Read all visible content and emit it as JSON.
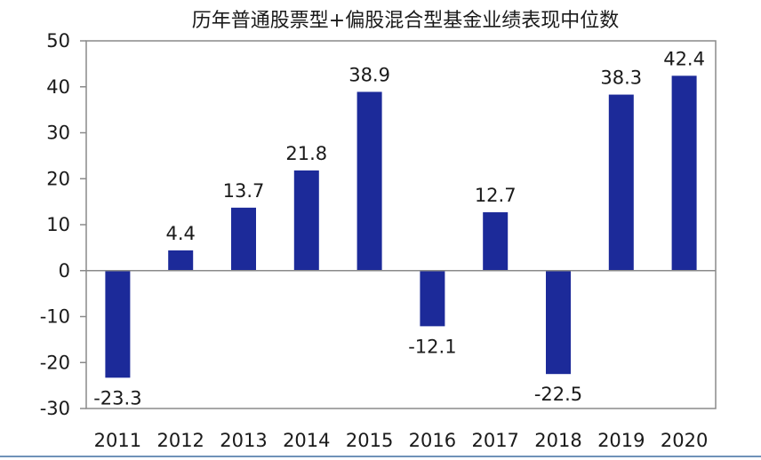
{
  "chart_data": {
    "type": "bar",
    "title": "历年普通股票型+偏股混合型基金业绩表现中位数",
    "categories": [
      "2011",
      "2012",
      "2013",
      "2014",
      "2015",
      "2016",
      "2017",
      "2018",
      "2019",
      "2020"
    ],
    "values": [
      -23.3,
      4.4,
      13.7,
      21.8,
      38.9,
      -12.1,
      12.7,
      -22.5,
      38.3,
      42.4
    ],
    "data_labels": [
      "-23.3",
      "4.4",
      "13.7",
      "21.8",
      "38.9",
      "-12.1",
      "12.7",
      "-22.5",
      "38.3",
      "42.4"
    ],
    "ylim": [
      -30,
      50
    ],
    "yticks": [
      50,
      40,
      30,
      20,
      10,
      0,
      -10,
      -20,
      -30
    ],
    "xlabel": "",
    "ylabel": "",
    "grid": false,
    "bar_color": "#1c2a99",
    "frame_color": "#8a8a8a",
    "bottom_rule_color": "#6f92b8"
  }
}
